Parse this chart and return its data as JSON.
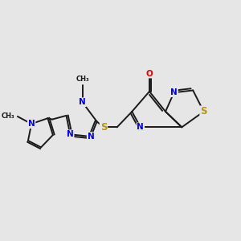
{
  "background_color": "#e6e6e6",
  "bond_color": "#1a1a1a",
  "bond_lw": 1.4,
  "atom_colors": {
    "N": "#0000ee",
    "S": "#b8960c",
    "O": "#ee0000",
    "C": "#1a1a1a"
  },
  "font_size": 7.5,
  "fig_size": [
    3.0,
    3.0
  ],
  "dpi": 100,
  "xlim": [
    0,
    10
  ],
  "ylim": [
    0,
    10
  ]
}
